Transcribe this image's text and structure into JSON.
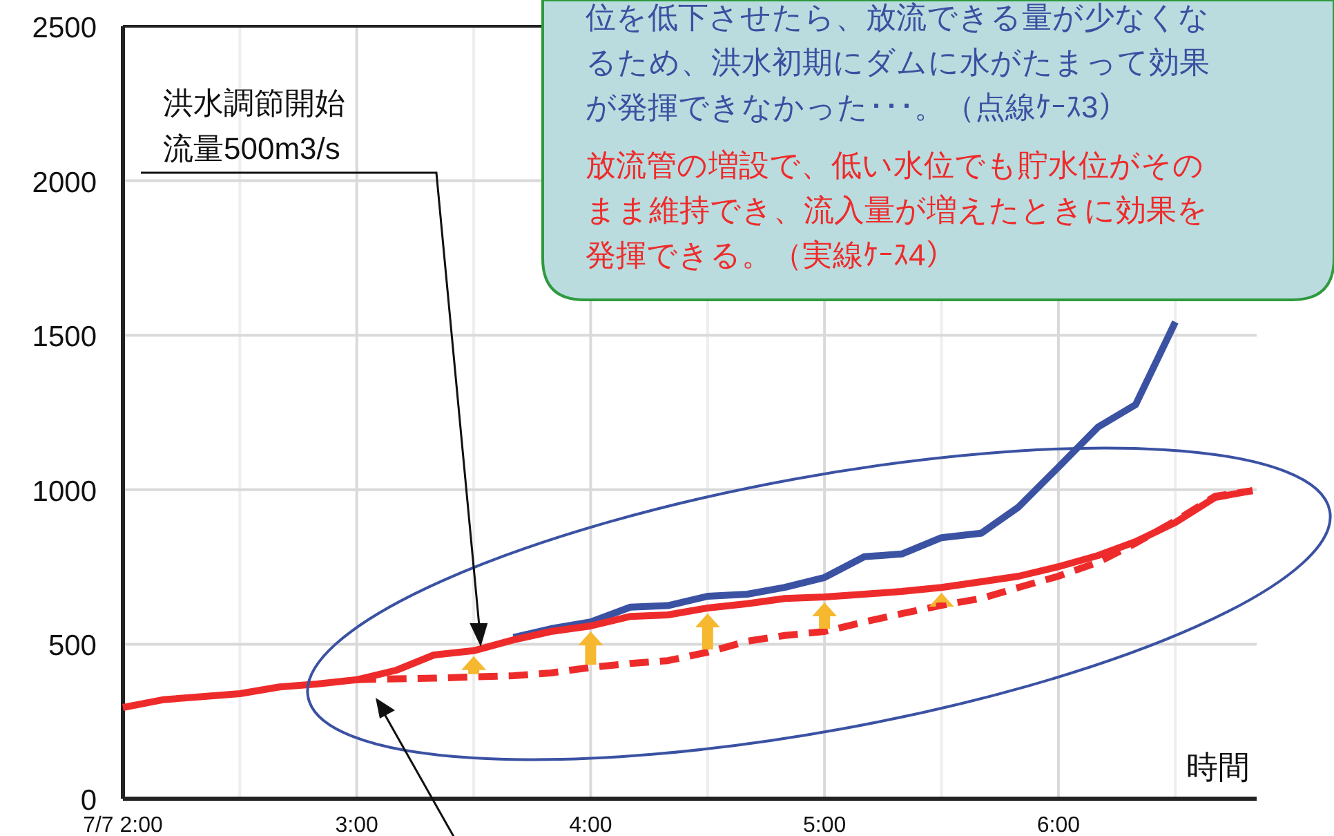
{
  "chart_data": {
    "type": "line",
    "x": [
      2,
      2.17,
      2.33,
      2.5,
      2.67,
      2.83,
      3,
      3.17,
      3.33,
      3.5,
      3.67,
      3.83,
      4,
      4.17,
      4.33,
      4.5,
      4.67,
      4.83,
      5,
      5.17,
      5.33,
      5.5,
      5.67,
      5.83,
      6,
      6.17,
      6.33,
      6.5,
      6.67,
      6.83
    ],
    "series": [
      {
        "color": "#3b52a3",
        "line_style": "solid",
        "values": [
          null,
          null,
          null,
          null,
          null,
          null,
          null,
          null,
          null,
          null,
          522,
          550,
          572,
          620,
          625,
          655,
          662,
          684,
          716,
          783,
          792,
          845,
          859,
          944,
          1073,
          1203,
          1275,
          1543,
          null,
          null
        ]
      },
      {
        "color": "#ee2b2b",
        "line_style": "dashed",
        "values": [
          null,
          null,
          null,
          null,
          null,
          null,
          385,
          388,
          390,
          394,
          398,
          407,
          425,
          438,
          447,
          474,
          510,
          528,
          541,
          572,
          599,
          626,
          648,
          684,
          720,
          765,
          827,
          899,
          979,
          997
        ]
      },
      {
        "color": "#ee2b2b",
        "line_style": "solid",
        "values": [
          295,
          320,
          330,
          340,
          362,
          371,
          385,
          416,
          465,
          479,
          514,
          541,
          559,
          590,
          595,
          617,
          631,
          648,
          653,
          662,
          671,
          684,
          702,
          720,
          751,
          787,
          832,
          894,
          975,
          997
        ]
      }
    ],
    "xlabel": "時間",
    "xlim": [
      2,
      6.83
    ],
    "xticks": [
      {
        "value": 2,
        "label": "7/7 2:00"
      },
      {
        "value": 2.5,
        "label": null
      },
      {
        "value": 3,
        "label": "3:00"
      },
      {
        "value": 3.5,
        "label": null
      },
      {
        "value": 4,
        "label": "4:00"
      },
      {
        "value": 4.5,
        "label": null
      },
      {
        "value": 5,
        "label": "5:00"
      },
      {
        "value": 5.5,
        "label": null
      },
      {
        "value": 6,
        "label": "6:00"
      },
      {
        "value": 6.5,
        "label": null
      }
    ],
    "ylim": [
      0,
      2500
    ],
    "yticks": [
      0,
      500,
      1000,
      1500,
      2000,
      2500
    ],
    "grid": true,
    "annotations": [
      "洪水調節開始流量500m3/s",
      "位を低下させたら、放流できる量が少なくなるため、洪水初期にダムに水がたまって効果が発揮できなかった･･･。（点線ｹｰｽ3）",
      "放流管の増設で、低い水位でも貯水位がそのまま維持でき、流入量が増えたときに効果を発揮できる。（実線ｹｰｽ4）"
    ]
  }
}
